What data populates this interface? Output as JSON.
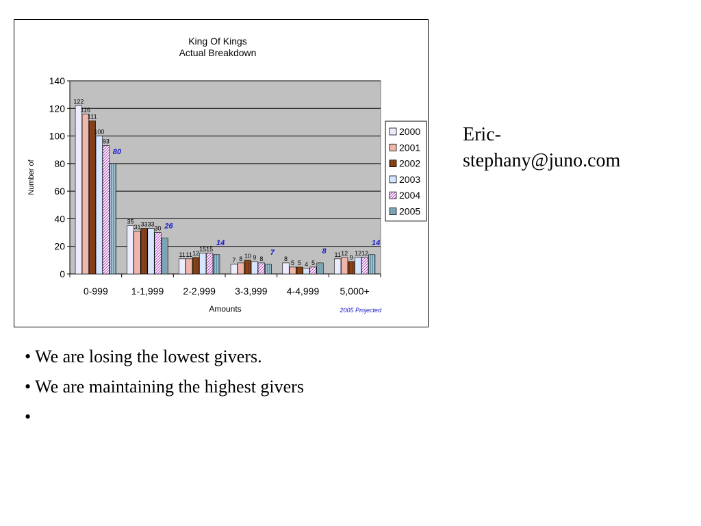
{
  "chart_data": {
    "type": "bar",
    "title_lines": [
      "King Of Kings",
      "Actual Breakdown"
    ],
    "xlabel": "Amounts",
    "ylabel": "Number of",
    "ylim": [
      0,
      140
    ],
    "yticks": [
      0,
      20,
      40,
      60,
      80,
      100,
      120,
      140
    ],
    "categories": [
      "0-999",
      "1-1,999",
      "2-2,999",
      "3-3,999",
      "4-4,999",
      "5,000+"
    ],
    "series": [
      {
        "name": "2000",
        "values": [
          122,
          35,
          11,
          7,
          8,
          11
        ],
        "color": "#ececff"
      },
      {
        "name": "2001",
        "values": [
          116,
          31,
          11,
          8,
          5,
          12
        ],
        "color": "#efb6ac"
      },
      {
        "name": "2002",
        "values": [
          111,
          33,
          12,
          10,
          5,
          9
        ],
        "color": "#8a4418"
      },
      {
        "name": "2003",
        "values": [
          100,
          33,
          15,
          9,
          4,
          12
        ],
        "color": "#d6e6ff"
      },
      {
        "name": "2004",
        "values": [
          93,
          30,
          15,
          8,
          5,
          12
        ],
        "color": "#e8c6f0"
      },
      {
        "name": "2005",
        "values": [
          80,
          26,
          14,
          7,
          8,
          14
        ],
        "color": "#7ea6b4"
      }
    ],
    "projected_note": "2005 Projected",
    "grid": true,
    "legend_position": "right",
    "plot_background": "#c0c0c0",
    "projected_label_color": "#1a1acc"
  },
  "contact": {
    "line1": "Eric-",
    "line2": "stephany@juno.com"
  },
  "bullets": [
    "We are losing the lowest givers.",
    "We are maintaining the highest givers",
    ""
  ],
  "bullet_symbol": "•"
}
